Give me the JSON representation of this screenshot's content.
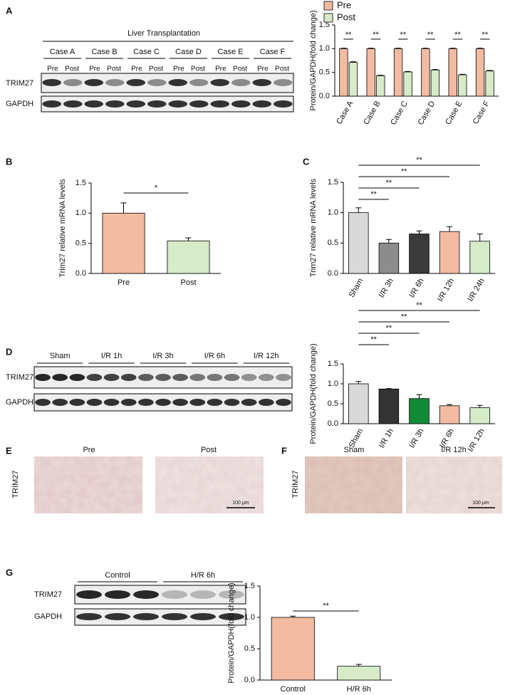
{
  "chart_data": [
    {
      "type": "bar",
      "ylabel": "Protein/GAPDH(fold change)",
      "categories": [
        "Case A",
        "Case B",
        "Case C",
        "Case D",
        "Case E",
        "Case F"
      ],
      "series": [
        {
          "name": "Pre",
          "color": "#f4bba3",
          "values": [
            1,
            1,
            1,
            1,
            1,
            1
          ],
          "errors": [
            0.01,
            0.01,
            0.01,
            0.01,
            0.01,
            0.01
          ]
        },
        {
          "name": "Post",
          "color": "#d7ebc9",
          "values": [
            0.71,
            0.43,
            0.51,
            0.55,
            0.45,
            0.53
          ],
          "errors": [
            0.015,
            0.01,
            0.01,
            0.01,
            0.01,
            0.01
          ]
        }
      ],
      "ylim": [
        0,
        1.5
      ],
      "yticks": [
        {
          "value": 0,
          "label": "0.0"
        },
        0.5,
        {
          "value": 1,
          "label": "1.0"
        },
        1.5
      ],
      "significance": [
        "**",
        "**",
        "**",
        "**",
        "**",
        "**"
      ],
      "legend": "top-left"
    },
    {
      "type": "bar",
      "ylabel": "Trim27 relative mRNA levels",
      "categories": [
        "Pre",
        "Post"
      ],
      "values": [
        1.0,
        0.54
      ],
      "errors": [
        0.17,
        0.05
      ],
      "colors": [
        "#f4bba3",
        "#d7ebc9"
      ],
      "ylim": [
        0,
        1.5
      ],
      "yticks": [
        {
          "value": 0,
          "label": "0.0"
        },
        0.5,
        {
          "value": 1,
          "label": "1.0"
        },
        1.5
      ],
      "comparisons": [
        {
          "label": "*",
          "pair": [
            0,
            1
          ]
        }
      ]
    },
    {
      "type": "bar",
      "ylabel": "Trim27 relative mRNA levels",
      "categories": [
        "Sham",
        "I/R 3h",
        "I/R 6h",
        "I/R 12h",
        "I/R 24h"
      ],
      "values": [
        1.0,
        0.5,
        0.65,
        0.69,
        0.53
      ],
      "errors": [
        0.08,
        0.06,
        0.05,
        0.08,
        0.12
      ],
      "colors": [
        "#d9d9d9",
        "#8c8c8c",
        "#3a3a3a",
        "#f4bba3",
        "#d7ebc9"
      ],
      "ylim": [
        0,
        1.5
      ],
      "yticks": [
        {
          "value": 0,
          "label": "0.0"
        },
        0.5,
        {
          "value": 1,
          "label": "1.0"
        },
        1.5
      ],
      "comparisons": [
        {
          "label": "**",
          "pair": [
            0,
            1
          ]
        },
        {
          "label": "**",
          "pair": [
            0,
            2
          ]
        },
        {
          "label": "**",
          "pair": [
            0,
            3
          ]
        },
        {
          "label": "**",
          "pair": [
            0,
            4
          ]
        }
      ]
    },
    {
      "type": "bar",
      "ylabel": "Protein/GAPDH(fold change)",
      "categories": [
        "Sham",
        "I/R 1h",
        "I/R 3h",
        "I/R 6h",
        "I/R 12h"
      ],
      "values": [
        1.0,
        0.87,
        0.63,
        0.45,
        0.4
      ],
      "errors": [
        0.06,
        0.01,
        0.1,
        0.03,
        0.06
      ],
      "colors": [
        "#d9d9d9",
        "#333333",
        "#138a36",
        "#f4bba3",
        "#d7ebc9"
      ],
      "ylim": [
        0,
        1.5
      ],
      "yticks": [
        {
          "value": 0,
          "label": "0.0"
        },
        0.5,
        {
          "value": 1,
          "label": "1.0"
        },
        1.5
      ],
      "comparisons": [
        {
          "label": "**",
          "pair": [
            0,
            1
          ]
        },
        {
          "label": "**",
          "pair": [
            0,
            2
          ]
        },
        {
          "label": "**",
          "pair": [
            0,
            3
          ]
        },
        {
          "label": "**",
          "pair": [
            0,
            4
          ]
        }
      ]
    },
    {
      "type": "bar",
      "ylabel": "Protein/GAPDH(fold change)",
      "categories": [
        "Control",
        "H/R 6h"
      ],
      "values": [
        1.0,
        0.22
      ],
      "errors": [
        0.02,
        0.03
      ],
      "colors": [
        "#f4bba3",
        "#d7ebc9"
      ],
      "ylim": [
        0,
        1.5
      ],
      "yticks": [
        {
          "value": 0,
          "label": "0.0"
        },
        0.5,
        {
          "value": 1,
          "label": "1.0"
        },
        1.5
      ],
      "comparisons": [
        {
          "label": "**",
          "pair": [
            0,
            1
          ]
        }
      ]
    }
  ],
  "panels": {
    "a": "A",
    "b": "B",
    "c": "C",
    "d": "D",
    "e": "E",
    "f": "F",
    "g": "G"
  },
  "blot_a": {
    "title": "Liver Transplantation",
    "cases": [
      "Case A",
      "Case B",
      "Case C",
      "Case D",
      "Case E",
      "Case F"
    ],
    "lanes": [
      "Pre",
      "Post"
    ],
    "rows": [
      "TRIM27",
      "GAPDH"
    ]
  },
  "blot_d": {
    "groups": [
      "Sham",
      "I/R 1h",
      "I/R 3h",
      "I/R 6h",
      "I/R 12h"
    ],
    "rows": [
      "TRIM27",
      "GAPDH"
    ]
  },
  "blot_g": {
    "groups": [
      "Control",
      "H/R 6h"
    ],
    "rows": [
      "TRIM27",
      "GAPDH"
    ]
  },
  "ihc_e": {
    "label": "TRIM27",
    "titles": [
      "Pre",
      "Post"
    ],
    "scale": "100 μm"
  },
  "ihc_f": {
    "label": "TRIM27",
    "titles": [
      "Sham",
      "I/R 12h"
    ],
    "scale": "100 μm"
  }
}
